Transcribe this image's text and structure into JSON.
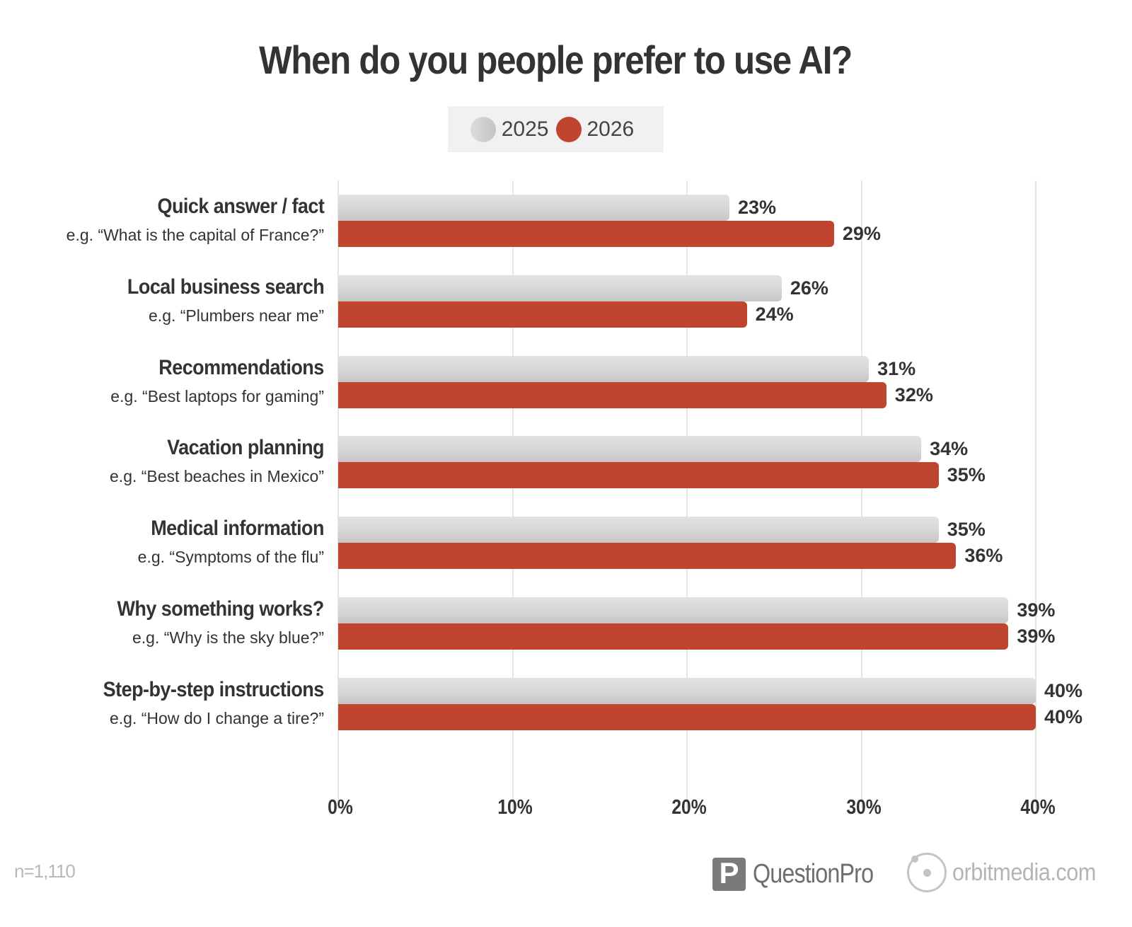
{
  "title": "When do you people prefer to use AI?",
  "legend": [
    {
      "label": "2025",
      "color": "#d0d0d0"
    },
    {
      "label": "2026",
      "color": "#bf452e"
    }
  ],
  "footnote": "n=1,110",
  "logos": {
    "questionpro": {
      "icon_glyph": "P",
      "text": "QuestionPro"
    },
    "orbitmedia": {
      "text": "orbitmedia.com"
    }
  },
  "axis": {
    "ticks": [
      "0%",
      "10%",
      "20%",
      "30%",
      "40%"
    ]
  },
  "categories": [
    {
      "title": "Quick answer / fact",
      "example": "e.g. “What is the capital of France?”",
      "v2025": "23%",
      "v2026": "29%"
    },
    {
      "title": "Local business search",
      "example": "e.g. “Plumbers near me”",
      "v2025": "26%",
      "v2026": "24%"
    },
    {
      "title": "Recommendations",
      "example": "e.g. “Best laptops for gaming”",
      "v2025": "31%",
      "v2026": "32%"
    },
    {
      "title": "Vacation planning",
      "example": "e.g. “Best beaches in Mexico”",
      "v2025": "34%",
      "v2026": "35%"
    },
    {
      "title": "Medical information",
      "example": "e.g. “Symptoms of the flu”",
      "v2025": "35%",
      "v2026": "36%"
    },
    {
      "title": "Why something works?",
      "example": "e.g. “Why is the sky blue?”",
      "v2025": "39%",
      "v2026": "39%"
    },
    {
      "title": "Step-by-step instructions",
      "example": "e.g. “How do I change a tire?”",
      "v2025": "40%",
      "v2026": "40%"
    }
  ],
  "chart_data": {
    "type": "bar",
    "orientation": "horizontal",
    "title": "When do you people prefer to use AI?",
    "categories": [
      "Quick answer / fact",
      "Local business search",
      "Recommendations",
      "Vacation planning",
      "Medical information",
      "Why something works?",
      "Step-by-step instructions"
    ],
    "category_examples": [
      "e.g. “What is the capital of France?”",
      "e.g. “Plumbers near me”",
      "e.g. “Best laptops for gaming”",
      "e.g. “Best beaches in Mexico”",
      "e.g. “Symptoms of the flu”",
      "e.g. “Why is the sky blue?”",
      "e.g. “How do I change a tire?”"
    ],
    "series": [
      {
        "name": "2025",
        "color": "#d0d0d0",
        "values": [
          23,
          26,
          31,
          34,
          35,
          39,
          40
        ]
      },
      {
        "name": "2026",
        "color": "#bf452e",
        "values": [
          29,
          24,
          32,
          35,
          36,
          39,
          40
        ]
      }
    ],
    "xlabel": "",
    "ylabel": "",
    "xlim": [
      0,
      40
    ],
    "x_ticks": [
      "0%",
      "10%",
      "20%",
      "30%",
      "40%"
    ],
    "grid": "vertical",
    "legend_position": "top-center",
    "data_labels": true,
    "footnote": "n=1,110"
  }
}
